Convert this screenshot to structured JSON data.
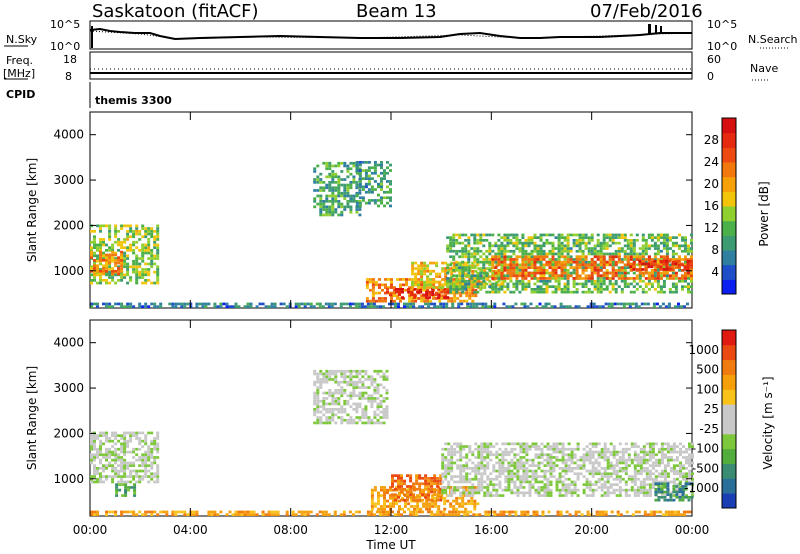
{
  "header": {
    "station": "Saskatoon (fitACF)",
    "beam": "Beam 13",
    "date": "07/Feb/2016"
  },
  "top_panels": {
    "nsky_label": "N.Sky",
    "nsky_ticks": [
      "10^5",
      "10^0"
    ],
    "nsearch_label": "N.Search",
    "nsearch_ticks": [
      "10^5",
      "10^0"
    ],
    "freq_label": "Freq.",
    "freq_unit": "[MHz]",
    "freq_ticks": [
      "18",
      "8"
    ],
    "nave_label": "Nave",
    "nave_ticks": [
      "60",
      "0"
    ],
    "cpid_label": "CPID",
    "cpid_value": "themis 3300"
  },
  "chart_data": [
    {
      "type": "heatmap",
      "panel": "power",
      "ylabel": "Slant Range [km]",
      "yticks": [
        "4000",
        "3000",
        "2000",
        "1000"
      ],
      "ylim": [
        180,
        4500
      ],
      "xlim": [
        0,
        24
      ],
      "colorbar": {
        "label": "Power [dB]",
        "ticks": [
          "28",
          "24",
          "20",
          "16",
          "12",
          "8",
          "4"
        ],
        "range": [
          0,
          32
        ],
        "colors": [
          "#0a1ff0",
          "#1e4fc8",
          "#2f7fa0",
          "#3c9b70",
          "#4bb04a",
          "#8fcf2f",
          "#f2c40a",
          "#f6a00a",
          "#f2780e",
          "#ec4a10",
          "#e52a10",
          "#d80f10"
        ]
      },
      "regions": [
        {
          "t0": 0.0,
          "t1": 2.7,
          "r0": 700,
          "r1": 2000,
          "level": 14
        },
        {
          "t0": 0.0,
          "t1": 1.3,
          "r0": 900,
          "r1": 1400,
          "level": 22
        },
        {
          "t0": 8.9,
          "t1": 10.7,
          "r0": 2200,
          "r1": 3400,
          "level": 10
        },
        {
          "t0": 10.6,
          "t1": 12.0,
          "r0": 2400,
          "r1": 3400,
          "level": 9
        },
        {
          "t0": 11.0,
          "t1": 15.4,
          "r0": 300,
          "r1": 800,
          "level": 22
        },
        {
          "t0": 11.8,
          "t1": 14.2,
          "r0": 380,
          "r1": 600,
          "level": 30
        },
        {
          "t0": 12.8,
          "t1": 16.5,
          "r0": 600,
          "r1": 1200,
          "level": 18
        },
        {
          "t0": 14.2,
          "t1": 24.0,
          "r0": 500,
          "r1": 1800,
          "level": 12
        },
        {
          "t0": 16.0,
          "t1": 24.0,
          "r0": 800,
          "r1": 1300,
          "level": 24
        },
        {
          "t0": 21.5,
          "t1": 24.0,
          "r0": 1000,
          "r1": 1200,
          "level": 29
        },
        {
          "t0": 0.0,
          "t1": 24.0,
          "r0": 180,
          "r1": 300,
          "level": 6
        }
      ]
    },
    {
      "type": "heatmap",
      "panel": "velocity",
      "ylabel": "Slant Range [km]",
      "yticks": [
        "4000",
        "3000",
        "2000",
        "1000"
      ],
      "ylim": [
        180,
        4500
      ],
      "xlim": [
        0,
        24
      ],
      "xlabel": "Time UT",
      "xticks": [
        "00:00",
        "04:00",
        "08:00",
        "12:00",
        "16:00",
        "20:00",
        "00:00"
      ],
      "colorbar": {
        "label": "Velocity [m s⁻¹]",
        "ticks": [
          "1000",
          "500",
          "100",
          "25",
          "-25",
          "-100",
          "-500",
          "-1000"
        ],
        "colors": [
          "#1a3fb4",
          "#2a6f9a",
          "#3a8d72",
          "#53ad3c",
          "#7cc83a",
          "#c8c8c8",
          "#c8c8c8",
          "#f8c21a",
          "#f5a00a",
          "#f07c10",
          "#ea4a10",
          "#e01a10"
        ]
      },
      "regions": [
        {
          "t0": 0.0,
          "t1": 2.7,
          "r0": 900,
          "r1": 2000,
          "level": 5
        },
        {
          "t0": 1.0,
          "t1": 1.8,
          "r0": 600,
          "r1": 850,
          "level": 3
        },
        {
          "t0": 8.9,
          "t1": 11.8,
          "r0": 2200,
          "r1": 3400,
          "level": 5
        },
        {
          "t0": 11.2,
          "t1": 15.5,
          "r0": 300,
          "r1": 800,
          "level": 8
        },
        {
          "t0": 12.0,
          "t1": 14.0,
          "r0": 500,
          "r1": 1100,
          "level": 9
        },
        {
          "t0": 14.0,
          "t1": 24.0,
          "r0": 600,
          "r1": 1800,
          "level": 5
        },
        {
          "t0": 22.5,
          "t1": 24.0,
          "r0": 500,
          "r1": 900,
          "level": 2
        },
        {
          "t0": 0.0,
          "t1": 24.0,
          "r0": 180,
          "r1": 300,
          "level": 8
        }
      ]
    }
  ]
}
